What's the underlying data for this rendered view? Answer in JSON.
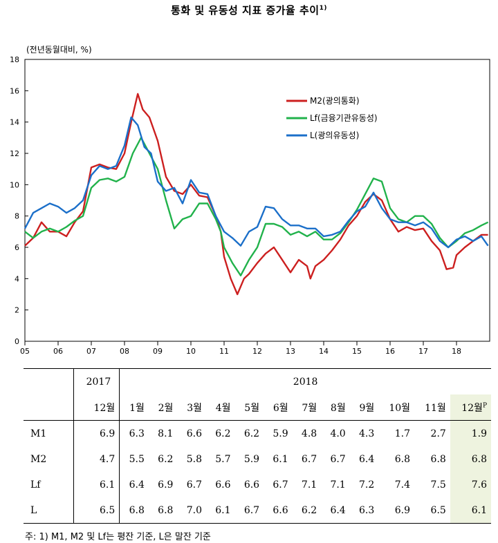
{
  "title": "통화 및 유동성 지표 증가율 추이",
  "title_sup": "1)",
  "unit_label": "(전년동월대비, %)",
  "chart_data": {
    "type": "line",
    "ylim": [
      0,
      18
    ],
    "yticks": [
      "0",
      "2",
      "4",
      "6",
      "8",
      "10",
      "12",
      "14",
      "16",
      "18"
    ],
    "xticks": [
      "05",
      "06",
      "07",
      "08",
      "09",
      "10",
      "11",
      "12",
      "13",
      "14",
      "15",
      "16",
      "17",
      "18"
    ],
    "xlim": [
      2005,
      2019
    ],
    "legend_position": "top-right",
    "grid": false,
    "series": [
      {
        "name": "M2(광의통화)",
        "color": "#cc1f1f",
        "points": [
          [
            2005.0,
            6.1
          ],
          [
            2005.25,
            6.6
          ],
          [
            2005.5,
            7.6
          ],
          [
            2005.75,
            7.0
          ],
          [
            2006.0,
            7.0
          ],
          [
            2006.25,
            6.7
          ],
          [
            2006.5,
            7.6
          ],
          [
            2006.75,
            8.3
          ],
          [
            2007.0,
            11.1
          ],
          [
            2007.25,
            11.3
          ],
          [
            2007.5,
            11.1
          ],
          [
            2007.75,
            11.0
          ],
          [
            2008.0,
            12.0
          ],
          [
            2008.2,
            14.0
          ],
          [
            2008.4,
            15.8
          ],
          [
            2008.55,
            14.8
          ],
          [
            2008.75,
            14.3
          ],
          [
            2009.0,
            12.8
          ],
          [
            2009.25,
            10.5
          ],
          [
            2009.5,
            9.6
          ],
          [
            2009.75,
            9.4
          ],
          [
            2010.0,
            10.0
          ],
          [
            2010.25,
            9.3
          ],
          [
            2010.5,
            9.2
          ],
          [
            2010.75,
            8.0
          ],
          [
            2010.9,
            7.0
          ],
          [
            2011.0,
            5.4
          ],
          [
            2011.2,
            4.0
          ],
          [
            2011.4,
            3.0
          ],
          [
            2011.6,
            4.0
          ],
          [
            2011.75,
            4.3
          ],
          [
            2012.0,
            5.0
          ],
          [
            2012.25,
            5.6
          ],
          [
            2012.5,
            6.0
          ],
          [
            2012.75,
            5.2
          ],
          [
            2013.0,
            4.4
          ],
          [
            2013.25,
            5.2
          ],
          [
            2013.5,
            4.8
          ],
          [
            2013.6,
            4.0
          ],
          [
            2013.75,
            4.8
          ],
          [
            2014.0,
            5.2
          ],
          [
            2014.25,
            5.8
          ],
          [
            2014.5,
            6.5
          ],
          [
            2014.75,
            7.4
          ],
          [
            2015.0,
            8.0
          ],
          [
            2015.25,
            8.9
          ],
          [
            2015.5,
            9.4
          ],
          [
            2015.75,
            9.0
          ],
          [
            2016.0,
            7.8
          ],
          [
            2016.25,
            7.0
          ],
          [
            2016.5,
            7.3
          ],
          [
            2016.75,
            7.1
          ],
          [
            2017.0,
            7.2
          ],
          [
            2017.25,
            6.4
          ],
          [
            2017.5,
            5.8
          ],
          [
            2017.7,
            4.6
          ],
          [
            2017.9,
            4.7
          ],
          [
            2018.0,
            5.5
          ],
          [
            2018.25,
            6.0
          ],
          [
            2018.5,
            6.4
          ],
          [
            2018.75,
            6.8
          ],
          [
            2018.95,
            6.8
          ]
        ]
      },
      {
        "name": "Lf(금융기관유동성)",
        "color": "#21b24b",
        "points": [
          [
            2005.0,
            7.0
          ],
          [
            2005.25,
            6.6
          ],
          [
            2005.5,
            7.0
          ],
          [
            2005.75,
            7.2
          ],
          [
            2006.0,
            7.0
          ],
          [
            2006.25,
            7.3
          ],
          [
            2006.5,
            7.7
          ],
          [
            2006.75,
            8.0
          ],
          [
            2007.0,
            9.8
          ],
          [
            2007.25,
            10.3
          ],
          [
            2007.5,
            10.4
          ],
          [
            2007.75,
            10.2
          ],
          [
            2008.0,
            10.5
          ],
          [
            2008.25,
            12.0
          ],
          [
            2008.5,
            13.0
          ],
          [
            2008.75,
            12.0
          ],
          [
            2009.0,
            11.0
          ],
          [
            2009.25,
            9.0
          ],
          [
            2009.5,
            7.2
          ],
          [
            2009.75,
            7.8
          ],
          [
            2010.0,
            8.0
          ],
          [
            2010.25,
            8.8
          ],
          [
            2010.5,
            8.8
          ],
          [
            2010.75,
            7.8
          ],
          [
            2010.9,
            7.0
          ],
          [
            2011.0,
            6.0
          ],
          [
            2011.25,
            5.0
          ],
          [
            2011.5,
            4.2
          ],
          [
            2011.75,
            5.2
          ],
          [
            2012.0,
            6.0
          ],
          [
            2012.25,
            7.5
          ],
          [
            2012.5,
            7.5
          ],
          [
            2012.75,
            7.3
          ],
          [
            2013.0,
            6.8
          ],
          [
            2013.25,
            7.0
          ],
          [
            2013.5,
            6.7
          ],
          [
            2013.75,
            7.0
          ],
          [
            2014.0,
            6.5
          ],
          [
            2014.25,
            6.5
          ],
          [
            2014.5,
            6.9
          ],
          [
            2014.75,
            7.6
          ],
          [
            2015.0,
            8.4
          ],
          [
            2015.25,
            9.4
          ],
          [
            2015.5,
            10.4
          ],
          [
            2015.75,
            10.2
          ],
          [
            2016.0,
            8.5
          ],
          [
            2016.25,
            7.8
          ],
          [
            2016.5,
            7.6
          ],
          [
            2016.75,
            8.0
          ],
          [
            2017.0,
            8.0
          ],
          [
            2017.25,
            7.5
          ],
          [
            2017.5,
            6.6
          ],
          [
            2017.75,
            6.0
          ],
          [
            2018.0,
            6.4
          ],
          [
            2018.25,
            6.9
          ],
          [
            2018.5,
            7.1
          ],
          [
            2018.75,
            7.4
          ],
          [
            2018.95,
            7.6
          ]
        ]
      },
      {
        "name": "L(광의유동성)",
        "color": "#1b6fc9",
        "points": [
          [
            2005.0,
            7.2
          ],
          [
            2005.25,
            8.2
          ],
          [
            2005.5,
            8.5
          ],
          [
            2005.75,
            8.8
          ],
          [
            2006.0,
            8.6
          ],
          [
            2006.25,
            8.2
          ],
          [
            2006.5,
            8.5
          ],
          [
            2006.75,
            9.0
          ],
          [
            2007.0,
            10.6
          ],
          [
            2007.25,
            11.2
          ],
          [
            2007.5,
            11.0
          ],
          [
            2007.75,
            11.2
          ],
          [
            2008.0,
            12.5
          ],
          [
            2008.2,
            14.3
          ],
          [
            2008.4,
            13.8
          ],
          [
            2008.6,
            12.4
          ],
          [
            2008.8,
            12.0
          ],
          [
            2009.0,
            10.2
          ],
          [
            2009.25,
            9.6
          ],
          [
            2009.5,
            9.8
          ],
          [
            2009.75,
            8.8
          ],
          [
            2010.0,
            10.3
          ],
          [
            2010.25,
            9.5
          ],
          [
            2010.5,
            9.4
          ],
          [
            2010.75,
            8.0
          ],
          [
            2011.0,
            7.0
          ],
          [
            2011.25,
            6.6
          ],
          [
            2011.5,
            6.1
          ],
          [
            2011.75,
            7.0
          ],
          [
            2012.0,
            7.3
          ],
          [
            2012.25,
            8.6
          ],
          [
            2012.5,
            8.5
          ],
          [
            2012.75,
            7.8
          ],
          [
            2013.0,
            7.4
          ],
          [
            2013.25,
            7.4
          ],
          [
            2013.5,
            7.2
          ],
          [
            2013.75,
            7.2
          ],
          [
            2014.0,
            6.7
          ],
          [
            2014.25,
            6.8
          ],
          [
            2014.5,
            7.0
          ],
          [
            2014.75,
            7.7
          ],
          [
            2015.0,
            8.3
          ],
          [
            2015.25,
            8.6
          ],
          [
            2015.5,
            9.5
          ],
          [
            2015.75,
            8.5
          ],
          [
            2016.0,
            7.8
          ],
          [
            2016.25,
            7.6
          ],
          [
            2016.5,
            7.6
          ],
          [
            2016.75,
            7.4
          ],
          [
            2017.0,
            7.6
          ],
          [
            2017.25,
            7.2
          ],
          [
            2017.5,
            6.4
          ],
          [
            2017.75,
            6.0
          ],
          [
            2018.0,
            6.5
          ],
          [
            2018.25,
            6.7
          ],
          [
            2018.5,
            6.4
          ],
          [
            2018.75,
            6.7
          ],
          [
            2018.95,
            6.1
          ]
        ]
      }
    ]
  },
  "table": {
    "year_2017": "2017",
    "year_2018": "2018",
    "months_2017": [
      "12월"
    ],
    "months_2018": [
      "1월",
      "2월",
      "3월",
      "4월",
      "5월",
      "6월",
      "7월",
      "8월",
      "9월",
      "10월",
      "11월",
      "12월"
    ],
    "last_month_sup": "P",
    "rows": [
      {
        "label": "M1",
        "values": [
          "6.9",
          "6.3",
          "8.1",
          "6.6",
          "6.2",
          "6.2",
          "5.9",
          "4.8",
          "4.0",
          "4.3",
          "1.7",
          "2.7",
          "1.9"
        ]
      },
      {
        "label": "M2",
        "values": [
          "4.7",
          "5.5",
          "6.2",
          "5.8",
          "5.7",
          "5.9",
          "6.1",
          "6.7",
          "6.7",
          "6.4",
          "6.8",
          "6.8",
          "6.8"
        ]
      },
      {
        "label": "Lf",
        "values": [
          "6.1",
          "6.4",
          "6.9",
          "6.7",
          "6.6",
          "6.6",
          "6.7",
          "7.1",
          "7.1",
          "7.2",
          "7.4",
          "7.5",
          "7.6"
        ]
      },
      {
        "label": "L",
        "values": [
          "6.5",
          "6.8",
          "6.8",
          "7.0",
          "6.1",
          "6.7",
          "6.6",
          "6.2",
          "6.4",
          "6.3",
          "6.9",
          "6.5",
          "6.1"
        ]
      }
    ],
    "highlight_color": "#eef3df"
  },
  "note": "주: 1) M1, M2 및 Lf는 평잔 기준, L은 말잔 기준"
}
